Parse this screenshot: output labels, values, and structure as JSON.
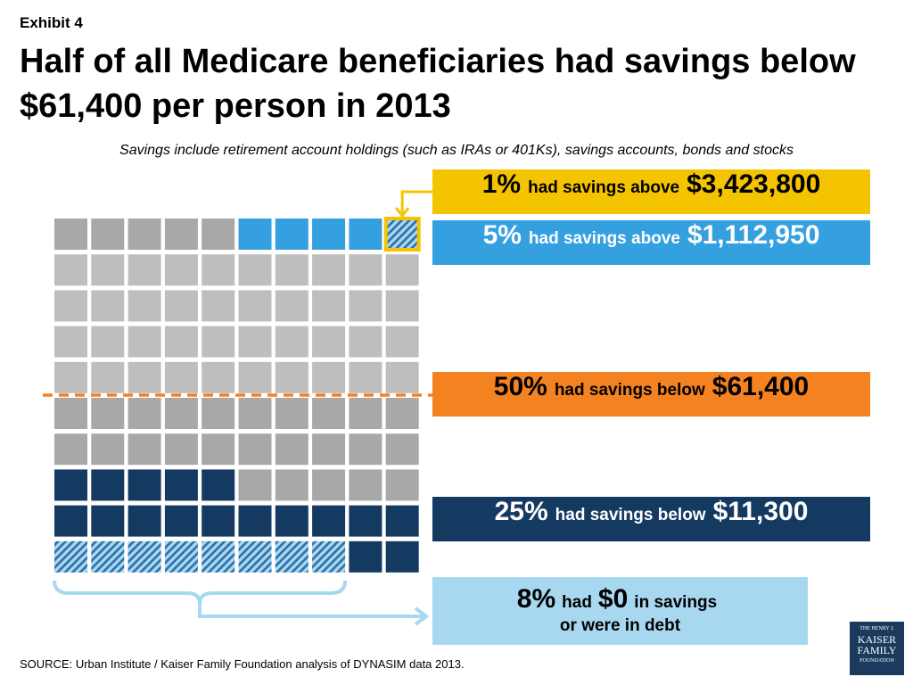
{
  "header": {
    "exhibit": "Exhibit 4",
    "title": "Half of all Medicare beneficiaries had savings below $61,400 per person in 2013",
    "subtitle": "Savings include retirement account holdings (such as IRAs or 401Ks), savings accounts, bonds and stocks"
  },
  "callouts": {
    "top1": {
      "pct": "1%",
      "text": "had savings above",
      "amount": "$3,423,800"
    },
    "top5": {
      "pct": "5%",
      "text": "had savings above",
      "amount": "$1,112,950"
    },
    "median": {
      "pct": "50%",
      "text": "had savings below",
      "amount": "$61,400"
    },
    "q25": {
      "pct": "25%",
      "text": "had savings below",
      "amount": "$11,300"
    },
    "zero": {
      "pct": "8%",
      "had": "had",
      "amount": "$0",
      "in_savings": "in savings",
      "line2": "or were in debt"
    }
  },
  "source": "SOURCE: Urban Institute / Kaiser Family Foundation analysis of DYNASIM data 2013.",
  "logo": {
    "line1": "THE HENRY J.",
    "line2": "KAISER",
    "line3": "FAMILY",
    "line4": "FOUNDATION"
  },
  "colors": {
    "yellow": "#F5C400",
    "blue": "#35A0E0",
    "orange": "#F58220",
    "navy": "#153A62",
    "light_blue": "#A8D8F0",
    "gray_dark": "#A8A8A8",
    "gray_light": "#BEBEBE"
  },
  "chart_data": {
    "type": "waffle",
    "rows": 10,
    "cols": 10,
    "total_percent": 100,
    "segments": [
      {
        "label": "had $0 in savings or were in debt",
        "percent": 8,
        "color": "light_blue",
        "hatched": true
      },
      {
        "label": "had savings below $11,300",
        "percent": 25,
        "color": "navy"
      },
      {
        "label": "had savings below $61,400",
        "percent": 50,
        "color": "gray"
      },
      {
        "label": "had savings above $1,112,950",
        "percent": 5,
        "color": "blue"
      },
      {
        "label": "had savings above $3,423,800",
        "percent": 1,
        "color": "yellow",
        "hatched": true
      }
    ],
    "median_line_percent": 50
  }
}
